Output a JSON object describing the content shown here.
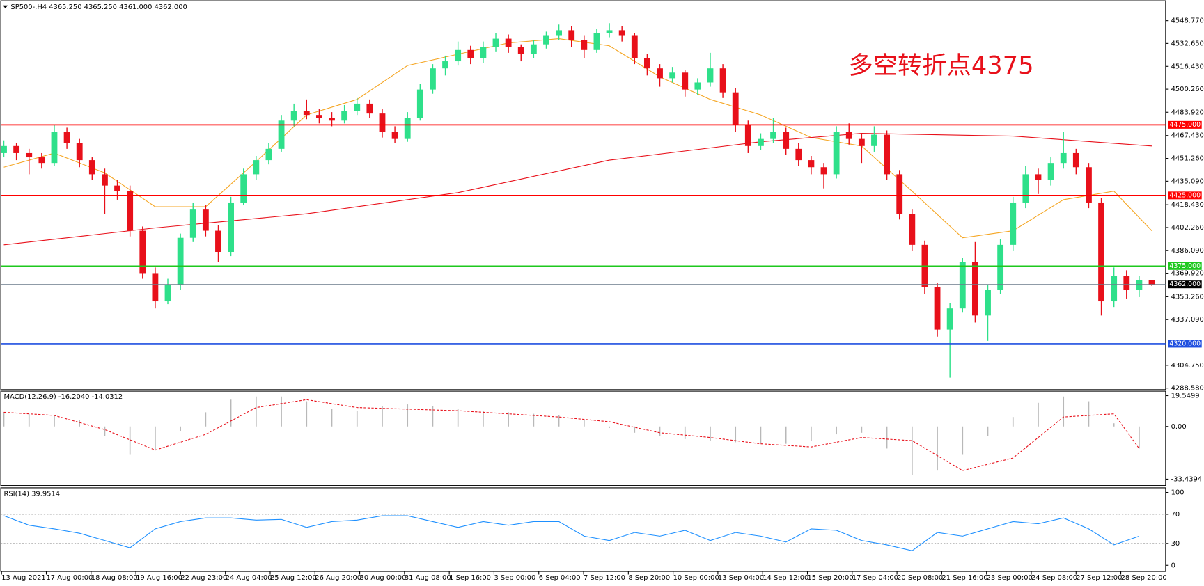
{
  "chart_data": [
    {
      "type": "candlestick",
      "title": "SP500-,H4  4365.250 4365.250 4361.000 4362.000",
      "annotation": "多空转折点4375",
      "up_color": "#2ee08a",
      "down_color": "#e8101a",
      "ylim": [
        4287.5,
        4562.3
      ],
      "yticks": [
        {
          "value": 4548.77,
          "label": "4548.770"
        },
        {
          "value": 4532.65,
          "label": "4532.650"
        },
        {
          "value": 4516.43,
          "label": "4516.430"
        },
        {
          "value": 4500.26,
          "label": "4500.260"
        },
        {
          "value": 4483.92,
          "label": "4483.920"
        },
        {
          "value": 4467.43,
          "label": "4467.430"
        },
        {
          "value": 4451.26,
          "label": "4451.260"
        },
        {
          "value": 4435.09,
          "label": "4435.090"
        },
        {
          "value": 4418.43,
          "label": "4418.430"
        },
        {
          "value": 4402.26,
          "label": "4402.260"
        },
        {
          "value": 4386.09,
          "label": "4386.090"
        },
        {
          "value": 4369.92,
          "label": "4369.920"
        },
        {
          "value": 4353.26,
          "label": "4353.260"
        },
        {
          "value": 4337.09,
          "label": "4337.090"
        },
        {
          "value": 4304.75,
          "label": "4304.750"
        },
        {
          "value": 4288.58,
          "label": "4288.580"
        }
      ],
      "levels": [
        {
          "value": 4475,
          "label": "4475.000",
          "color": "#ff0000"
        },
        {
          "value": 4425,
          "label": "4425.000",
          "color": "#ff0000"
        },
        {
          "value": 4375,
          "label": "4375.000",
          "color": "#1ec81e"
        },
        {
          "value": 4362,
          "label": "4362.000",
          "color": "#6a7a8a"
        },
        {
          "value": 4320,
          "label": "4320.000",
          "color": "#1f4fe0"
        }
      ],
      "candles": [
        [
          4455,
          4464,
          4452,
          4460
        ],
        [
          4460,
          4462,
          4450,
          4455
        ],
        [
          4455,
          4458,
          4440,
          4452
        ],
        [
          4452,
          4455,
          4444,
          4448
        ],
        [
          4448,
          4475,
          4446,
          4470
        ],
        [
          4470,
          4473,
          4458,
          4462
        ],
        [
          4462,
          4465,
          4445,
          4450
        ],
        [
          4450,
          4452,
          4436,
          4440
        ],
        [
          4440,
          4444,
          4412,
          4432
        ],
        [
          4432,
          4436,
          4422,
          4428
        ],
        [
          4428,
          4432,
          4396,
          4400
        ],
        [
          4400,
          4403,
          4366,
          4370
        ],
        [
          4370,
          4374,
          4345,
          4350
        ],
        [
          4350,
          4366,
          4348,
          4362
        ],
        [
          4362,
          4398,
          4358,
          4395
        ],
        [
          4395,
          4420,
          4392,
          4415
        ],
        [
          4415,
          4418,
          4396,
          4400
        ],
        [
          4400,
          4404,
          4378,
          4385
        ],
        [
          4385,
          4424,
          4382,
          4420
        ],
        [
          4420,
          4444,
          4418,
          4440
        ],
        [
          4440,
          4453,
          4436,
          4450
        ],
        [
          4450,
          4462,
          4447,
          4458
        ],
        [
          4458,
          4482,
          4456,
          4478
        ],
        [
          4478,
          4490,
          4474,
          4485
        ],
        [
          4485,
          4493,
          4479,
          4482
        ],
        [
          4482,
          4486,
          4476,
          4480
        ],
        [
          4480,
          4484,
          4474,
          4478
        ],
        [
          4478,
          4489,
          4476,
          4485
        ],
        [
          4485,
          4494,
          4482,
          4490
        ],
        [
          4490,
          4493,
          4480,
          4483
        ],
        [
          4483,
          4486,
          4466,
          4470
        ],
        [
          4470,
          4474,
          4462,
          4465
        ],
        [
          4465,
          4484,
          4463,
          4480
        ],
        [
          4480,
          4504,
          4478,
          4500
        ],
        [
          4500,
          4518,
          4497,
          4515
        ],
        [
          4515,
          4524,
          4510,
          4520
        ],
        [
          4520,
          4534,
          4517,
          4528
        ],
        [
          4528,
          4531,
          4518,
          4522
        ],
        [
          4522,
          4534,
          4519,
          4530
        ],
        [
          4530,
          4540,
          4527,
          4536
        ],
        [
          4536,
          4539,
          4526,
          4530
        ],
        [
          4530,
          4532,
          4520,
          4525
        ],
        [
          4525,
          4535,
          4522,
          4532
        ],
        [
          4532,
          4541,
          4529,
          4538
        ],
        [
          4538,
          4546,
          4535,
          4542
        ],
        [
          4542,
          4545,
          4530,
          4535
        ],
        [
          4535,
          4538,
          4522,
          4528
        ],
        [
          4528,
          4543,
          4526,
          4540
        ],
        [
          4540,
          4547,
          4537,
          4542
        ],
        [
          4542,
          4545,
          4534,
          4538
        ],
        [
          4538,
          4540,
          4518,
          4522
        ],
        [
          4522,
          4525,
          4510,
          4515
        ],
        [
          4515,
          4518,
          4502,
          4508
        ],
        [
          4508,
          4516,
          4505,
          4512
        ],
        [
          4512,
          4514,
          4495,
          4500
        ],
        [
          4500,
          4508,
          4496,
          4505
        ],
        [
          4505,
          4526,
          4502,
          4515
        ],
        [
          4515,
          4518,
          4494,
          4498
        ],
        [
          4498,
          4501,
          4470,
          4475
        ],
        [
          4475,
          4478,
          4455,
          4460
        ],
        [
          4460,
          4469,
          4457,
          4465
        ],
        [
          4465,
          4480,
          4462,
          4470
        ],
        [
          4470,
          4473,
          4454,
          4458
        ],
        [
          4458,
          4462,
          4446,
          4450
        ],
        [
          4450,
          4453,
          4440,
          4445
        ],
        [
          4445,
          4448,
          4430,
          4440
        ],
        [
          4440,
          4474,
          4437,
          4470
        ],
        [
          4470,
          4476,
          4461,
          4465
        ],
        [
          4465,
          4469,
          4448,
          4460
        ],
        [
          4460,
          4474,
          4456,
          4468
        ],
        [
          4468,
          4471,
          4436,
          4440
        ],
        [
          4440,
          4443,
          4408,
          4412
        ],
        [
          4412,
          4415,
          4386,
          4390
        ],
        [
          4390,
          4393,
          4355,
          4360
        ],
        [
          4360,
          4363,
          4325,
          4330
        ],
        [
          4330,
          4349,
          4296,
          4345
        ],
        [
          4345,
          4381,
          4342,
          4378
        ],
        [
          4378,
          4392,
          4335,
          4340
        ],
        [
          4340,
          4362,
          4322,
          4358
        ],
        [
          4358,
          4394,
          4355,
          4390
        ],
        [
          4390,
          4424,
          4386,
          4420
        ],
        [
          4420,
          4446,
          4416,
          4440
        ],
        [
          4440,
          4444,
          4426,
          4436
        ],
        [
          4436,
          4452,
          4432,
          4448
        ],
        [
          4448,
          4470,
          4444,
          4455
        ],
        [
          4455,
          4458,
          4440,
          4445
        ],
        [
          4445,
          4448,
          4416,
          4420
        ],
        [
          4420,
          4423,
          4340,
          4350
        ],
        [
          4350,
          4374,
          4346,
          4368
        ],
        [
          4368,
          4372,
          4352,
          4358
        ],
        [
          4358,
          4368,
          4353,
          4365
        ],
        [
          4365,
          4365,
          4361,
          4362
        ]
      ],
      "lines": [
        {
          "color": "#f5a623",
          "x": [
            0,
            4,
            8,
            12,
            16,
            20,
            24,
            28,
            32,
            36,
            40,
            44,
            48,
            52,
            56,
            60,
            64,
            68,
            72,
            76,
            80,
            84,
            88,
            91
          ],
          "values": [
            4445,
            4455,
            4441,
            4417,
            4417,
            4449,
            4482,
            4493,
            4517,
            4525,
            4533,
            4536,
            4531,
            4509,
            4493,
            4482,
            4466,
            4460,
            4428,
            4395,
            4400,
            4422,
            4428,
            4400
          ]
        },
        {
          "color": "#e8101a",
          "x": [
            0,
            12,
            24,
            36,
            48,
            60,
            68,
            80,
            91
          ],
          "values": [
            4390,
            4402,
            4412,
            4427,
            4450,
            4463,
            4469,
            4467,
            4460
          ]
        }
      ],
      "time_labels": [
        "13 Aug 2021",
        "17 Aug 00:00",
        "18 Aug 08:00",
        "19 Aug 16:00",
        "22 Aug 23:00",
        "24 Aug 04:00",
        "25 Aug 12:00",
        "26 Aug 20:00",
        "30 Aug 00:00",
        "31 Aug 08:00",
        "1 Sep 16:00",
        "3 Sep 00:00",
        "6 Sep 04:00",
        "7 Sep 12:00",
        "8 Sep 20:00",
        "10 Sep 00:00",
        "13 Sep 04:00",
        "14 Sep 12:00",
        "15 Sep 20:00",
        "17 Sep 04:00",
        "20 Sep 08:00",
        "21 Sep 16:00",
        "23 Sep 00:00",
        "24 Sep 08:00",
        "27 Sep 12:00",
        "28 Sep 20:00"
      ]
    },
    {
      "type": "macd",
      "title": "MACD(12,26,9) -16.2040 -14.0312",
      "ylim": [
        -37.5,
        22.4
      ],
      "yticks": [
        19.5499,
        {
          "value": 0,
          "label": "0.00"
        },
        -33.4394
      ],
      "histogram": {
        "color": "#b8b8b8",
        "x": [
          0,
          2,
          4,
          6,
          8,
          10,
          12,
          14,
          16,
          18,
          20,
          22,
          24,
          26,
          28,
          30,
          32,
          34,
          36,
          38,
          40,
          42,
          44,
          46,
          48,
          50,
          52,
          54,
          56,
          58,
          60,
          62,
          64,
          66,
          68,
          70,
          72,
          74,
          76,
          78,
          80,
          82,
          84,
          86,
          88,
          90
        ],
        "values": [
          9,
          8,
          7,
          4,
          -6,
          -18,
          -15,
          -3,
          9,
          17,
          19,
          19,
          16,
          11,
          10,
          13,
          14,
          13,
          11,
          10,
          9,
          8,
          7,
          4,
          -1,
          -4,
          -6,
          -8,
          -9,
          -10,
          -11,
          -11,
          -9,
          -5,
          -4,
          -14,
          -31,
          -28,
          -18,
          -6,
          6,
          15,
          19,
          16,
          2,
          -14
        ]
      },
      "signal": {
        "color": "#e8101a",
        "x": [
          0,
          4,
          8,
          12,
          16,
          20,
          24,
          28,
          32,
          36,
          40,
          44,
          48,
          52,
          56,
          60,
          64,
          68,
          72,
          76,
          80,
          84,
          88,
          90
        ],
        "values": [
          9,
          7,
          -2,
          -15,
          -5,
          12,
          17,
          12,
          11,
          10,
          8,
          6,
          3,
          -4,
          -7,
          -11,
          -13,
          -7,
          -9,
          -28,
          -20,
          6,
          8,
          -14
        ]
      }
    },
    {
      "type": "rsi",
      "title": "RSI(14) 39.9514",
      "ylim": [
        -8.4,
        106.3
      ],
      "yticks": [
        100,
        70,
        30,
        0
      ],
      "levels": [
        70,
        30
      ],
      "line": {
        "color": "#1e90ff",
        "x": [
          0,
          2,
          4,
          6,
          8,
          10,
          12,
          14,
          16,
          18,
          20,
          22,
          24,
          26,
          28,
          30,
          32,
          34,
          36,
          38,
          40,
          42,
          44,
          46,
          48,
          50,
          52,
          54,
          56,
          58,
          60,
          62,
          64,
          66,
          68,
          70,
          72,
          74,
          76,
          78,
          80,
          82,
          84,
          86,
          88,
          90
        ],
        "values": [
          68,
          55,
          50,
          44,
          34,
          24,
          50,
          60,
          65,
          65,
          62,
          63,
          52,
          60,
          62,
          68,
          68,
          60,
          52,
          60,
          55,
          60,
          60,
          40,
          34,
          45,
          40,
          48,
          34,
          45,
          40,
          32,
          50,
          48,
          34,
          28,
          20,
          45,
          40,
          50,
          60,
          57,
          65,
          50,
          28,
          40
        ]
      }
    }
  ]
}
